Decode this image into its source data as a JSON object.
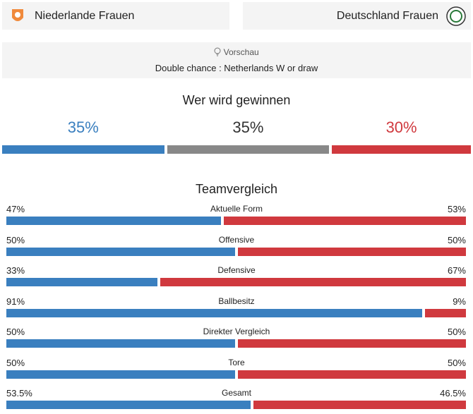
{
  "header": {
    "home": "Niederlande Frauen",
    "away": "Deutschland Frauen"
  },
  "preview": {
    "title": "Vorschau",
    "text": "Double chance : Netherlands W or draw"
  },
  "prediction": {
    "title": "Wer wird gewinnen",
    "values": [
      35,
      35,
      30
    ],
    "value_labels": [
      "35%",
      "35%",
      "30%"
    ],
    "colors": [
      "#3a7fbf",
      "#888888",
      "#d0393e"
    ],
    "label_colors": [
      "#3a7fbf",
      "#333333",
      "#d0393e"
    ]
  },
  "comparison": {
    "title": "Teamvergleich",
    "colors": [
      "#3a7fbf",
      "#d0393e"
    ],
    "rows": [
      {
        "label": "Aktuelle Form",
        "values": [
          47,
          53
        ],
        "value_labels": [
          "47%",
          "53%"
        ]
      },
      {
        "label": "Offensive",
        "values": [
          50,
          50
        ],
        "value_labels": [
          "50%",
          "50%"
        ]
      },
      {
        "label": "Defensive",
        "values": [
          33,
          67
        ],
        "value_labels": [
          "33%",
          "67%"
        ]
      },
      {
        "label": "Ballbesitz",
        "values": [
          91,
          9
        ],
        "value_labels": [
          "91%",
          "9%"
        ]
      },
      {
        "label": "Direkter Vergleich",
        "values": [
          50,
          50
        ],
        "value_labels": [
          "50%",
          "50%"
        ]
      },
      {
        "label": "Tore",
        "values": [
          50,
          50
        ],
        "value_labels": [
          "50%",
          "50%"
        ]
      },
      {
        "label": "Gesamt",
        "values": [
          53.5,
          46.5
        ],
        "value_labels": [
          "53.5%",
          "46.5%"
        ]
      }
    ]
  }
}
